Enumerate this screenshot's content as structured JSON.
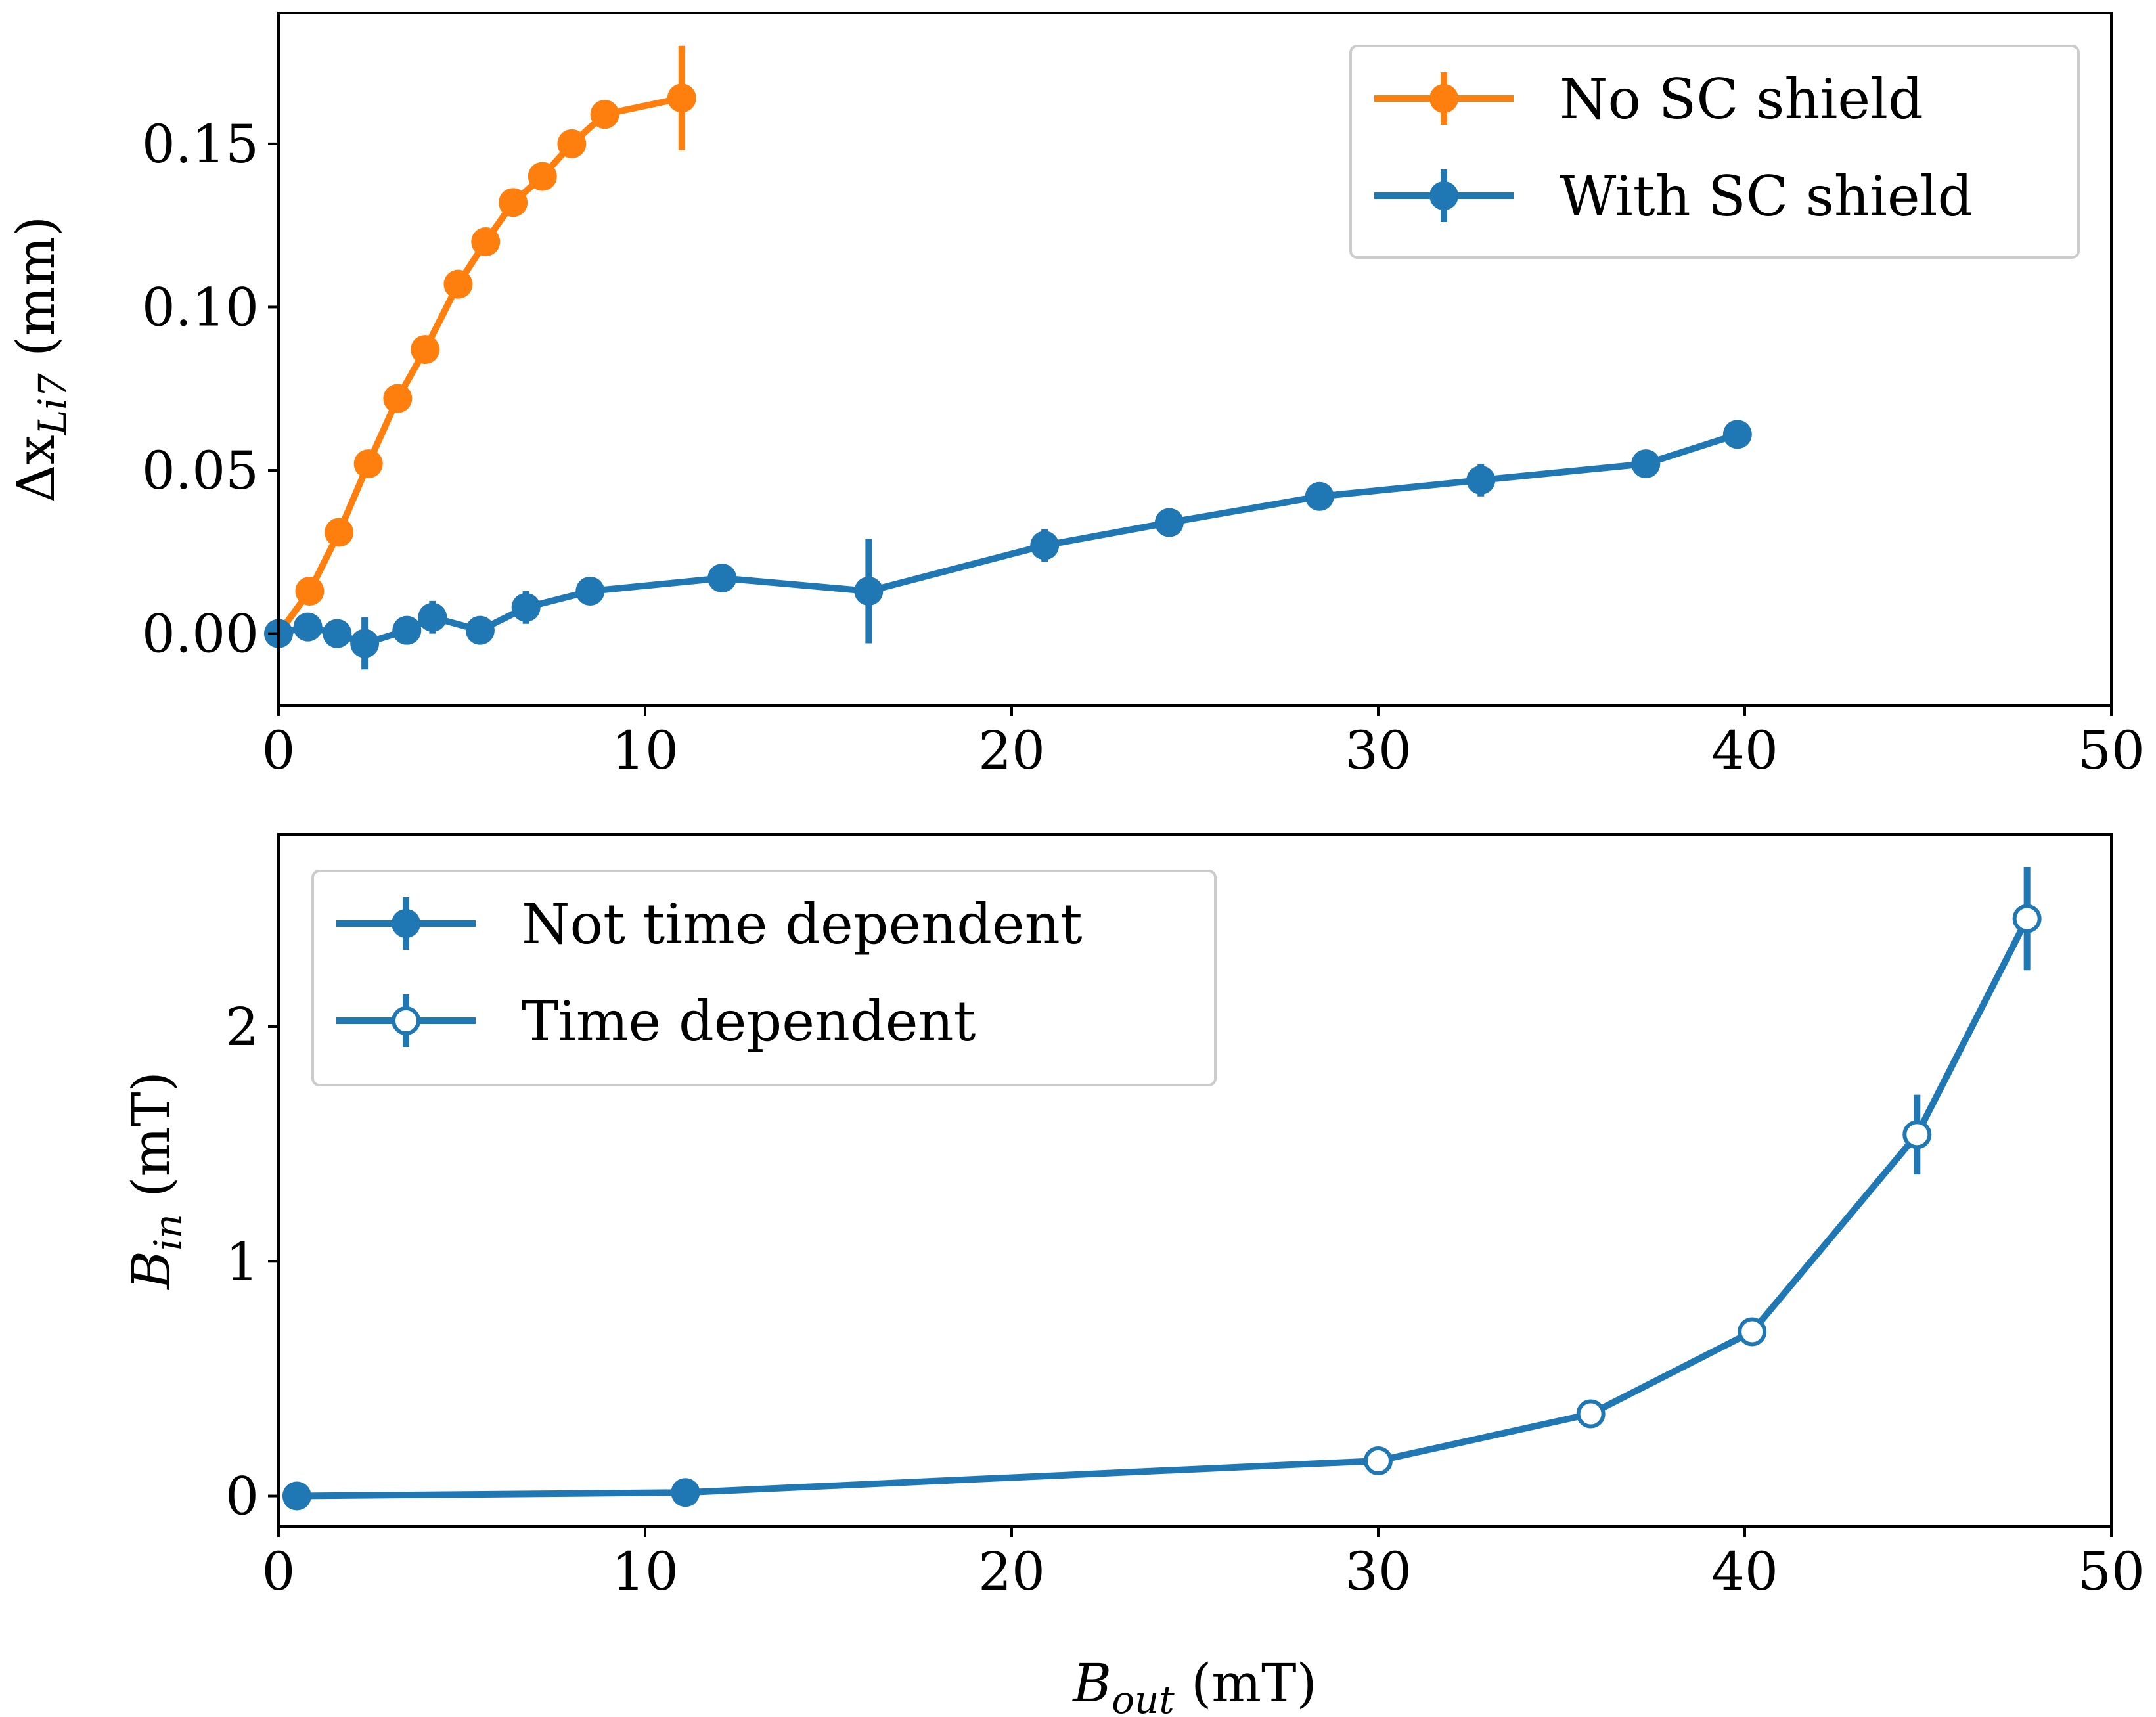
{
  "chart_data": [
    {
      "type": "line",
      "xlabel": "",
      "ylabel": {
        "main": "Δx",
        "sub": "Li7",
        "unit": " (mm)"
      },
      "xlim": [
        0,
        50
      ],
      "ylim": [
        -0.022,
        0.19
      ],
      "xticks": [
        0,
        10,
        20,
        30,
        40,
        50
      ],
      "xtick_labels": [
        "0",
        "10",
        "20",
        "30",
        "40",
        "50"
      ],
      "yticks": [
        0.0,
        0.05,
        0.1,
        0.15
      ],
      "ytick_labels": [
        "0.00",
        "0.05",
        "0.10",
        "0.15"
      ],
      "grid": false,
      "legend_position": "top-right",
      "series": [
        {
          "name": "No SC shield",
          "color": "#ff7f0e",
          "marker": "filled",
          "x": [
            0.0,
            0.85,
            1.65,
            2.45,
            3.25,
            4.0,
            4.9,
            5.65,
            6.4,
            7.2,
            8.0,
            8.9,
            11.0
          ],
          "y": [
            0.0,
            0.013,
            0.031,
            0.052,
            0.072,
            0.087,
            0.107,
            0.12,
            0.132,
            0.14,
            0.15,
            0.159,
            0.164
          ],
          "err": [
            0,
            0,
            0,
            0,
            0,
            0,
            0,
            0,
            0,
            0,
            0,
            0,
            0.016
          ]
        },
        {
          "name": "With SC shield",
          "color": "#1f77b4",
          "marker": "filled",
          "x": [
            0.0,
            0.8,
            1.6,
            2.35,
            3.5,
            4.2,
            5.5,
            6.75,
            8.5,
            12.1,
            16.1,
            20.9,
            24.3,
            28.4,
            32.8,
            37.3,
            39.8
          ],
          "y": [
            0.0,
            0.002,
            0.0,
            -0.003,
            0.001,
            0.005,
            0.001,
            0.008,
            0.013,
            0.017,
            0.013,
            0.027,
            0.034,
            0.042,
            0.047,
            0.052,
            0.061
          ],
          "err": [
            0,
            0.003,
            0.004,
            0.008,
            0.003,
            0.005,
            0.004,
            0.005,
            0.003,
            0.004,
            0.016,
            0.005,
            0.003,
            0.003,
            0.005,
            0.004,
            0.004
          ]
        }
      ]
    },
    {
      "type": "line",
      "xlabel": {
        "main": "B",
        "sub": "out",
        "unit": " (mT)"
      },
      "ylabel": {
        "main": "B",
        "sub": "in",
        "unit": " (mT)"
      },
      "xlim": [
        0,
        50
      ],
      "ylim": [
        -0.13,
        2.82
      ],
      "xticks": [
        0,
        10,
        20,
        30,
        40,
        50
      ],
      "xtick_labels": [
        "0",
        "10",
        "20",
        "30",
        "40",
        "50"
      ],
      "yticks": [
        0,
        1,
        2
      ],
      "ytick_labels": [
        "0",
        "1",
        "2"
      ],
      "grid": false,
      "legend_position": "top-left",
      "series": [
        {
          "name": "Not time dependent",
          "color": "#1f77b4",
          "marker": "filled",
          "x": [
            0.5,
            11.1
          ],
          "y": [
            0.0,
            0.015
          ],
          "err": [
            0,
            0
          ]
        },
        {
          "name": "Time dependent",
          "color": "#1f77b4",
          "marker": "open",
          "x": [
            30.0,
            35.8,
            40.2,
            44.7,
            47.7
          ],
          "y": [
            0.15,
            0.35,
            0.7,
            1.54,
            2.46
          ],
          "err": [
            0,
            0,
            0,
            0.17,
            0.22
          ]
        }
      ],
      "connect_all_series": true
    }
  ]
}
